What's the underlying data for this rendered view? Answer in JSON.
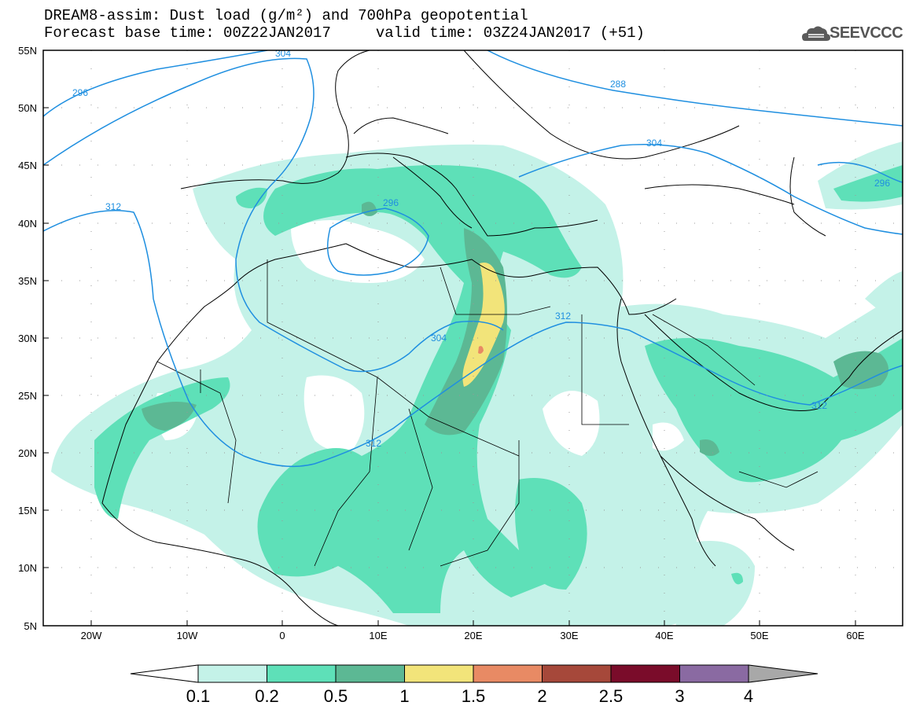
{
  "header": {
    "line1": "DREAM8-assim: Dust load (g/m²) and 700hPa geopotential",
    "line2": "Forecast base time: 00Z22JAN2017     valid time: 03Z24JAN2017 (+51)",
    "logo_text": "SEEVCCC"
  },
  "axes": {
    "lat_labels": [
      "55N",
      "50N",
      "45N",
      "40N",
      "35N",
      "30N",
      "25N",
      "20N",
      "15N",
      "10N",
      "5N"
    ],
    "lon_labels": [
      "20W",
      "10W",
      "0",
      "10E",
      "20E",
      "30E",
      "40E",
      "50E",
      "60E"
    ]
  },
  "contours": {
    "labels": [
      "296",
      "304",
      "288",
      "304",
      "296",
      "312",
      "296",
      "304",
      "312",
      "312",
      "312"
    ]
  },
  "colorbar": {
    "tick_labels": [
      "0.1",
      "0.2",
      "0.5",
      "1",
      "1.5",
      "2",
      "2.5",
      "3",
      "4"
    ],
    "colors": [
      "#c4f2e8",
      "#5ee0b8",
      "#5cb894",
      "#f2e47a",
      "#e88a64",
      "#a6483a",
      "#7a0c2a",
      "#8a6aa2",
      "#a8a8a8"
    ]
  },
  "map_colors": {
    "contour_line": "#1f8fe0",
    "border": "#000000"
  }
}
